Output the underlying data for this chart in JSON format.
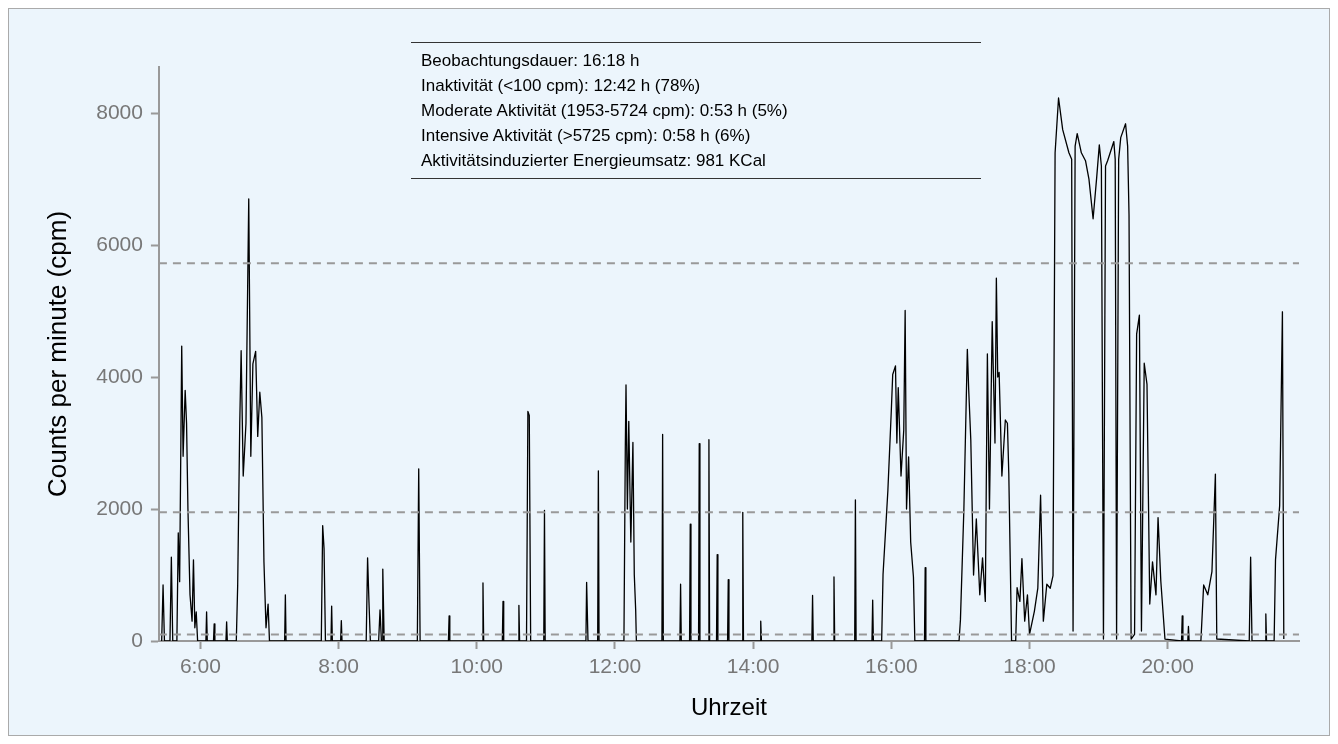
{
  "chart_data": {
    "type": "line",
    "xlabel": "Uhrzeit",
    "ylabel": "Counts per minute (cpm)",
    "annotations": [
      "Beobachtungsdauer: 16:18 h",
      "Inaktivität (<100 cpm): 12:42 h (78%)",
      "Moderate Aktivität (1953-5724 cpm): 0:53 h (5%)",
      "Intensive Aktivität (>5725 cpm): 0:58 h (6%)",
      "Aktivitätsinduzierter Energieumsatz: 981 KCal"
    ],
    "xlim": [
      5.4,
      21.9
    ],
    "ylim": [
      0,
      8700
    ],
    "xticks": [
      {
        "value": 6,
        "label": "6:00"
      },
      {
        "value": 8,
        "label": "8:00"
      },
      {
        "value": 10,
        "label": "10:00"
      },
      {
        "value": 12,
        "label": "12:00"
      },
      {
        "value": 14,
        "label": "14:00"
      },
      {
        "value": 16,
        "label": "16:00"
      },
      {
        "value": 18,
        "label": "18:00"
      },
      {
        "value": 20,
        "label": "20:00"
      }
    ],
    "yticks": [
      0,
      2000,
      4000,
      6000,
      8000
    ],
    "grid": false,
    "legend": false,
    "marker": "none",
    "line_style": "solid",
    "ref_lines": [
      {
        "axis": "y",
        "value": 100,
        "color": "#999999",
        "line_style": "dashed"
      },
      {
        "axis": "y",
        "value": 1953,
        "color": "#999999",
        "line_style": "dashed"
      },
      {
        "axis": "y",
        "value": 5725,
        "color": "#999999",
        "line_style": "dashed"
      }
    ],
    "series": [
      {
        "color": "#000000",
        "x": [
          5.44,
          5.46,
          5.48,
          5.56,
          5.58,
          5.6,
          5.66,
          5.68,
          5.7,
          5.73,
          5.75,
          5.78,
          5.8,
          5.82,
          5.85,
          5.88,
          5.9,
          5.92,
          5.94,
          5.96,
          6.08,
          6.09,
          6.1,
          6.19,
          6.2,
          6.21,
          6.37,
          6.38,
          6.39,
          6.52,
          6.54,
          6.57,
          6.59,
          6.62,
          6.66,
          6.7,
          6.71,
          6.73,
          6.76,
          6.8,
          6.83,
          6.86,
          6.89,
          6.92,
          6.95,
          6.98,
          7,
          7.22,
          7.23,
          7.24,
          7.75,
          7.77,
          7.79,
          7.81,
          7.89,
          7.9,
          7.91,
          8.03,
          8.04,
          8.05,
          8.4,
          8.42,
          8.44,
          8.46,
          8.58,
          8.6,
          8.62,
          8.63,
          8.64,
          8.66,
          9.14,
          9.16,
          9.18,
          9.59,
          9.6,
          9.61,
          10.08,
          10.09,
          10.1,
          10.37,
          10.38,
          10.39,
          10.6,
          10.61,
          10.62,
          10.72,
          10.74,
          10.76,
          10.78,
          10.97,
          10.98,
          10.99,
          11.58,
          11.59,
          11.61,
          11.75,
          11.76,
          11.77,
          12.13,
          12.15,
          12.16,
          12.18,
          12.2,
          12.23,
          12.26,
          12.28,
          12.3,
          12.31,
          12.68,
          12.69,
          12.7,
          12.94,
          12.95,
          12.96,
          13.08,
          13.09,
          13.1,
          13.21,
          13.22,
          13.23,
          13.35,
          13.36,
          13.37,
          13.47,
          13.48,
          13.49,
          13.63,
          13.64,
          13.65,
          13.84,
          13.85,
          13.86,
          14.1,
          14.11,
          14.12,
          14.85,
          14.86,
          14.87,
          15.16,
          15.17,
          15.18,
          15.47,
          15.48,
          15.49,
          15.72,
          15.73,
          15.74,
          15.86,
          15.88,
          15.95,
          16,
          16.02,
          16.06,
          16.08,
          16.1,
          16.14,
          16.18,
          16.2,
          16.22,
          16.25,
          16.28,
          16.32,
          16.34,
          16.48,
          16.49,
          16.5,
          16.98,
          17,
          17.05,
          17.1,
          17.12,
          17.15,
          17.19,
          17.23,
          17.28,
          17.32,
          17.36,
          17.39,
          17.42,
          17.46,
          17.5,
          17.52,
          17.54,
          17.56,
          17.6,
          17.65,
          17.68,
          17.7,
          17.74,
          17.8,
          17.82,
          17.86,
          17.89,
          17.93,
          17.97,
          18,
          18.07,
          18.12,
          18.16,
          18.2,
          18.25,
          18.3,
          18.34,
          18.37,
          18.42,
          18.48,
          18.57,
          18.61,
          18.63,
          18.66,
          18.69,
          18.75,
          18.81,
          18.86,
          18.92,
          18.97,
          19.01,
          19.04,
          19.07,
          19.1,
          19.13,
          19.22,
          19.24,
          19.26,
          19.29,
          19.32,
          19.39,
          19.42,
          19.44,
          19.47,
          19.52,
          19.55,
          19.59,
          19.62,
          19.66,
          19.7,
          19.74,
          19.78,
          19.83,
          19.86,
          19.9,
          19.96,
          20.2,
          20.21,
          20.22,
          20.29,
          20.3,
          20.31,
          20.48,
          20.52,
          20.58,
          20.64,
          20.69,
          20.71,
          21.18,
          21.2,
          21.22,
          21.41,
          21.42,
          21.43,
          21.54,
          21.56,
          21.62,
          21.66,
          21.68
        ],
        "values": [
          0,
          850,
          0,
          0,
          1270,
          0,
          0,
          1640,
          900,
          4470,
          2800,
          3800,
          3300,
          2000,
          700,
          300,
          1230,
          200,
          440,
          0,
          0,
          440,
          0,
          0,
          260,
          0,
          0,
          290,
          0,
          0,
          850,
          3300,
          4400,
          2500,
          3300,
          6700,
          5410,
          2800,
          4200,
          4390,
          3100,
          3770,
          3390,
          1200,
          200,
          560,
          0,
          0,
          700,
          0,
          0,
          1750,
          1400,
          0,
          0,
          530,
          0,
          0,
          310,
          0,
          0,
          1260,
          590,
          0,
          0,
          470,
          0,
          0,
          1090,
          0,
          0,
          2610,
          0,
          0,
          380,
          0,
          0,
          880,
          0,
          0,
          600,
          0,
          0,
          540,
          0,
          0,
          3480,
          3420,
          0,
          0,
          1980,
          0,
          0,
          890,
          0,
          0,
          2580,
          0,
          0,
          2940,
          3880,
          2000,
          3330,
          1500,
          3010,
          1000,
          470,
          0,
          0,
          3130,
          0,
          0,
          860,
          0,
          0,
          1770,
          0,
          0,
          2990,
          0,
          0,
          3050,
          0,
          0,
          1310,
          0,
          0,
          930,
          0,
          0,
          1950,
          0,
          0,
          300,
          0,
          0,
          690,
          0,
          0,
          970,
          0,
          0,
          2140,
          0,
          0,
          620,
          0,
          0,
          1010,
          2280,
          3500,
          4040,
          4170,
          3000,
          3840,
          2500,
          3200,
          5010,
          2000,
          2790,
          1500,
          970,
          0,
          0,
          1110,
          0,
          0,
          320,
          2000,
          4420,
          3800,
          3050,
          1000,
          1850,
          700,
          1260,
          600,
          4350,
          2000,
          4840,
          3000,
          5500,
          4000,
          4070,
          2500,
          3350,
          3300,
          2540,
          0,
          0,
          810,
          600,
          1250,
          300,
          700,
          100,
          450,
          800,
          2210,
          300,
          860,
          800,
          990,
          7400,
          8230,
          7750,
          7400,
          7300,
          150,
          7500,
          7690,
          7400,
          7280,
          7000,
          6400,
          7000,
          7520,
          7200,
          30,
          7200,
          7280,
          7570,
          7300,
          30,
          7300,
          7630,
          7840,
          7500,
          6460,
          30,
          100,
          4650,
          4940,
          150,
          4210,
          3890,
          560,
          1200,
          700,
          1870,
          910,
          30,
          0,
          380,
          0,
          0,
          220,
          0,
          0,
          850,
          700,
          1050,
          2530,
          30,
          0,
          1270,
          0,
          0,
          410,
          0,
          0,
          1230,
          2050,
          4990,
          30
        ]
      }
    ]
  }
}
